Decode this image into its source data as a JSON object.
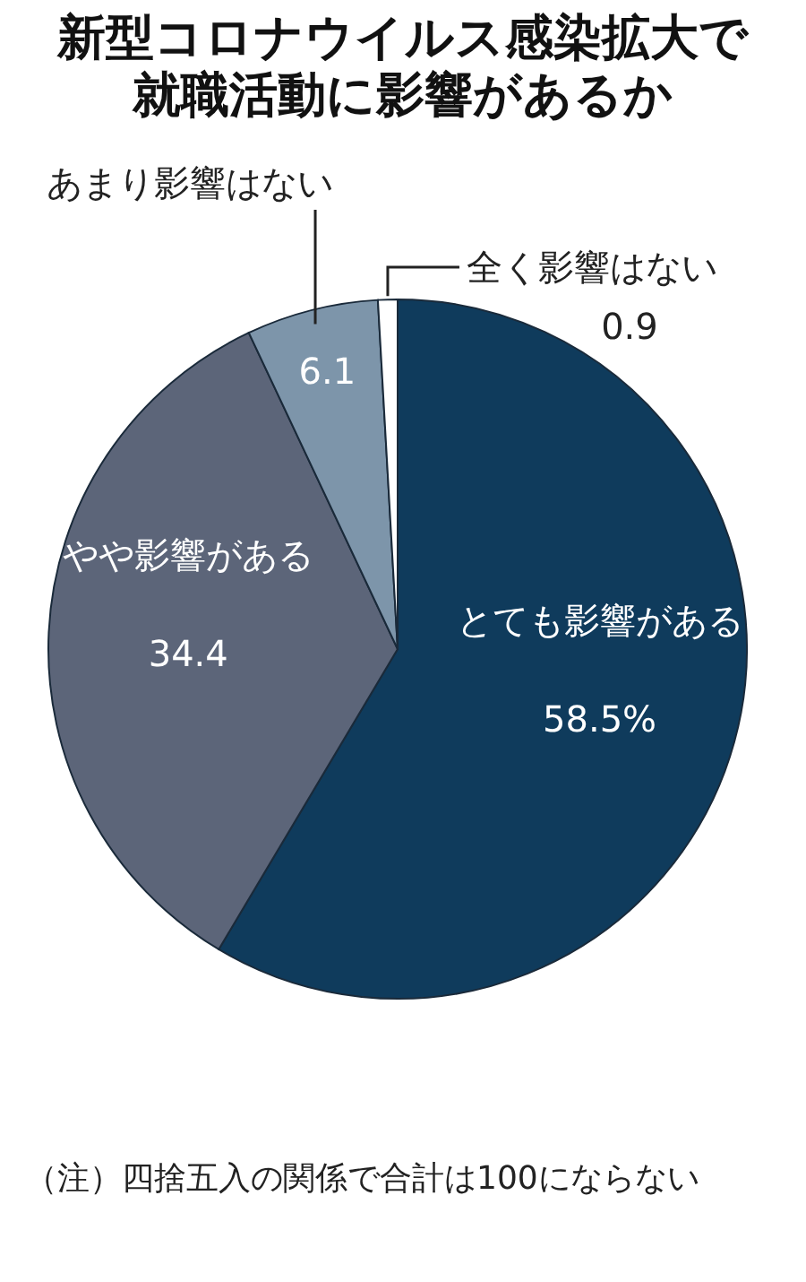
{
  "chart_data": {
    "type": "pie",
    "title": "新型コロナウイルス感染拡大で就職活動に影響があるか",
    "categories": [
      "とても影響がある",
      "やや影響がある",
      "あまり影響はない",
      "全く影響はない"
    ],
    "values": [
      58.5,
      34.4,
      6.1,
      0.9
    ],
    "colors": [
      "#0f3b5c",
      "#5c6579",
      "#7d95aa",
      "#ffffff"
    ],
    "value_labels": [
      "58.5%",
      "34.4",
      "6.1",
      "0.9"
    ],
    "legend": false,
    "annotations": [
      "（注）四捨五入の関係で合計は100にならない"
    ]
  }
}
